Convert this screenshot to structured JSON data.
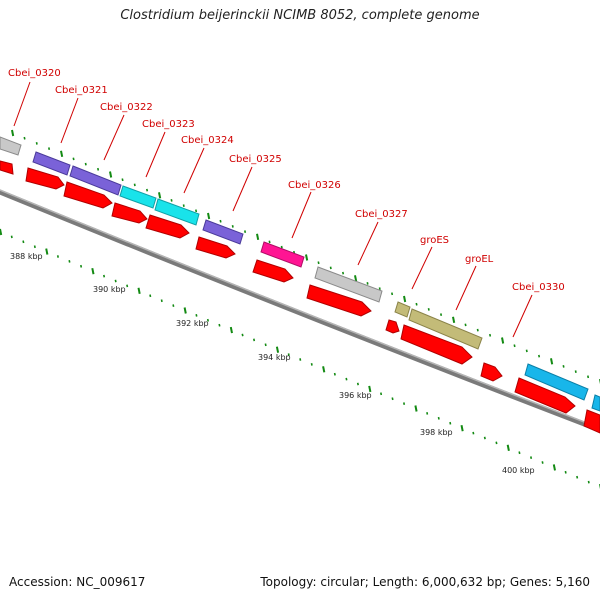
{
  "title": "Clostridium beijerinckii NCIMB 8052, complete genome",
  "footer": {
    "accession": "Accession: NC_009617",
    "summary": "Topology: circular; Length: 6,000,632 bp; Genes: 5,160"
  },
  "colors": {
    "backbone": "#8f8f8f",
    "tick": "#138a13",
    "gene_label": "#d00000",
    "cds_red": "#ff0000",
    "gray": "#c8c8c8",
    "purple": "#7a62d8",
    "cyan": "#19e3ea",
    "magenta": "#ff1493",
    "olive": "#c3bb78",
    "sky": "#18b6ea"
  },
  "kbp_labels": [
    "388 kbp",
    "390 kbp",
    "392 kbp",
    "394 kbp",
    "396 kbp",
    "398 kbp",
    "400 kbp"
  ],
  "gene_labels": [
    "Cbei_0320",
    "Cbei_0321",
    "Cbei_0322",
    "Cbei_0323",
    "Cbei_0324",
    "Cbei_0325",
    "Cbei_0326",
    "Cbei_0327",
    "groES",
    "groEL",
    "Cbei_0330"
  ]
}
